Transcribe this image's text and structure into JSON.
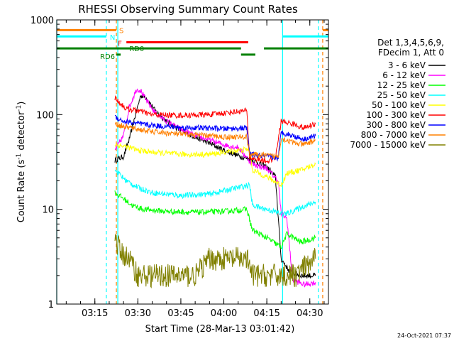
{
  "chart_data": {
    "type": "line",
    "title": "RHESSI Observing Summary Count Rates",
    "xlabel": "Start Time (28-Mar-13 03:01:42)",
    "ylabel": "Count Rate (s",
    "ylabel_sup": "-1",
    "ylabel_tail": " detector",
    "ylabel_sup2": "-1",
    "ylabel_close": ")",
    "y_scale": "log",
    "xlim": [
      "03:01:42",
      "04:36:30"
    ],
    "ylim": [
      1,
      1000
    ],
    "x_ticks": [
      "03:15",
      "03:30",
      "03:45",
      "04:00",
      "04:15",
      "04:30"
    ],
    "y_ticks": [
      "1",
      "10",
      "100",
      "1000"
    ],
    "legend_placement": "right",
    "legend_header": [
      "Det 1,3,4,5,6,9,",
      "FDecim 1, Att 0"
    ],
    "series": [
      {
        "name": "3 - 6 keV",
        "color": "#000000",
        "points": [
          [
            "03:22:00",
            33
          ],
          [
            "03:25:00",
            36
          ],
          [
            "03:27:00",
            55
          ],
          [
            "03:29:00",
            95
          ],
          [
            "03:31:00",
            160
          ],
          [
            "03:33:00",
            150
          ],
          [
            "03:36:00",
            110
          ],
          [
            "03:40:00",
            85
          ],
          [
            "03:45:00",
            68
          ],
          [
            "03:50:00",
            58
          ],
          [
            "03:55:00",
            50
          ],
          [
            "04:00:00",
            42
          ],
          [
            "04:05:00",
            37
          ],
          [
            "04:10:00",
            33
          ],
          [
            "04:15:00",
            28
          ],
          [
            "04:18:00",
            22
          ],
          [
            "04:20:00",
            3
          ],
          [
            "04:23:00",
            2.2
          ],
          [
            "04:27:00",
            2
          ],
          [
            "04:32:00",
            2
          ]
        ]
      },
      {
        "name": "6 - 12 keV",
        "color": "#ff00ff",
        "points": [
          [
            "03:22:00",
            42
          ],
          [
            "03:25:00",
            60
          ],
          [
            "03:27:00",
            120
          ],
          [
            "03:29:30",
            185
          ],
          [
            "03:31:00",
            180
          ],
          [
            "03:33:00",
            140
          ],
          [
            "03:36:00",
            105
          ],
          [
            "03:40:00",
            85
          ],
          [
            "03:45:00",
            70
          ],
          [
            "03:50:00",
            60
          ],
          [
            "03:55:00",
            54
          ],
          [
            "04:00:00",
            48
          ],
          [
            "04:05:00",
            45
          ],
          [
            "04:10:00",
            30
          ],
          [
            "04:15:00",
            27
          ],
          [
            "04:19:00",
            20
          ],
          [
            "04:20:00",
            9
          ],
          [
            "04:22:00",
            8
          ],
          [
            "04:24:00",
            1.8
          ],
          [
            "04:28:00",
            1.6
          ],
          [
            "04:32:00",
            1.7
          ]
        ]
      },
      {
        "name": "12 - 25 keV",
        "color": "#00ff00",
        "points": [
          [
            "03:22:00",
            15
          ],
          [
            "03:25:00",
            13
          ],
          [
            "03:28:00",
            11
          ],
          [
            "03:32:00",
            10
          ],
          [
            "03:40:00",
            9.5
          ],
          [
            "03:50:00",
            9.3
          ],
          [
            "04:00:00",
            9.5
          ],
          [
            "04:08:00",
            10
          ],
          [
            "04:10:00",
            6
          ],
          [
            "04:15:00",
            5
          ],
          [
            "04:20:00",
            4
          ],
          [
            "04:22:00",
            5.5
          ],
          [
            "04:27:00",
            4.5
          ],
          [
            "04:32:00",
            5
          ]
        ]
      },
      {
        "name": "25 - 50 keV",
        "color": "#00ffff",
        "points": [
          [
            "03:22:00",
            26
          ],
          [
            "03:26:00",
            20
          ],
          [
            "03:30:00",
            17
          ],
          [
            "03:35:00",
            15
          ],
          [
            "03:45:00",
            14
          ],
          [
            "03:55:00",
            14.5
          ],
          [
            "04:05:00",
            17
          ],
          [
            "04:09:00",
            18
          ],
          [
            "04:10:00",
            11
          ],
          [
            "04:15:00",
            10
          ],
          [
            "04:20:00",
            9
          ],
          [
            "04:22:00",
            9
          ],
          [
            "04:27:00",
            10.5
          ],
          [
            "04:32:00",
            12
          ]
        ]
      },
      {
        "name": "50 - 100 keV",
        "color": "#ffff00",
        "points": [
          [
            "03:22:00",
            48
          ],
          [
            "03:26:00",
            46
          ],
          [
            "03:30:00",
            42
          ],
          [
            "03:35:00",
            40
          ],
          [
            "03:45:00",
            38
          ],
          [
            "03:55:00",
            38
          ],
          [
            "04:05:00",
            42
          ],
          [
            "04:09:00",
            43
          ],
          [
            "04:10:00",
            26
          ],
          [
            "04:15:00",
            22
          ],
          [
            "04:20:00",
            18
          ],
          [
            "04:22:00",
            24
          ],
          [
            "04:27:00",
            26
          ],
          [
            "04:32:00",
            30
          ]
        ]
      },
      {
        "name": "100 - 300 keV",
        "color": "#ff0000",
        "points": [
          [
            "03:22:00",
            150
          ],
          [
            "03:24:00",
            130
          ],
          [
            "03:26:00",
            115
          ],
          [
            "03:30:00",
            110
          ],
          [
            "03:35:00",
            100
          ],
          [
            "03:45:00",
            98
          ],
          [
            "03:55:00",
            100
          ],
          [
            "04:00:00",
            104
          ],
          [
            "04:08:00",
            110
          ],
          [
            "04:09:00",
            35
          ],
          [
            "04:15:00",
            32
          ],
          [
            "04:18:00",
            35
          ],
          [
            "04:20:00",
            85
          ],
          [
            "04:24:00",
            80
          ],
          [
            "04:28:00",
            72
          ],
          [
            "04:32:00",
            80
          ]
        ]
      },
      {
        "name": "300 - 800 keV",
        "color": "#0000ff",
        "points": [
          [
            "03:22:00",
            95
          ],
          [
            "03:25:00",
            85
          ],
          [
            "03:30:00",
            80
          ],
          [
            "03:35:00",
            77
          ],
          [
            "03:45:00",
            73
          ],
          [
            "03:55:00",
            72
          ],
          [
            "04:00:00",
            71
          ],
          [
            "04:08:00",
            72
          ],
          [
            "04:09:00",
            38
          ],
          [
            "04:15:00",
            36
          ],
          [
            "04:19:00",
            35
          ],
          [
            "04:20:00",
            65
          ],
          [
            "04:24:00",
            60
          ],
          [
            "04:28:00",
            55
          ],
          [
            "04:32:00",
            60
          ]
        ]
      },
      {
        "name": "800 - 7000 keV",
        "color": "#ff8000",
        "points": [
          [
            "03:22:00",
            80
          ],
          [
            "03:25:00",
            75
          ],
          [
            "03:30:00",
            70
          ],
          [
            "03:35:00",
            66
          ],
          [
            "03:45:00",
            62
          ],
          [
            "03:55:00",
            60
          ],
          [
            "04:00:00",
            58
          ],
          [
            "04:08:00",
            58
          ],
          [
            "04:09:00",
            38
          ],
          [
            "04:15:00",
            37
          ],
          [
            "04:19:00",
            36
          ],
          [
            "04:20:00",
            56
          ],
          [
            "04:25:00",
            50
          ],
          [
            "04:28:00",
            48
          ],
          [
            "04:32:00",
            54
          ]
        ]
      },
      {
        "name": "7000 - 15000 keV",
        "color": "#808000",
        "points": [
          [
            "03:22:00",
            5
          ],
          [
            "03:24:00",
            3.5
          ],
          [
            "03:27:00",
            3
          ],
          [
            "03:30:00",
            2
          ],
          [
            "03:40:00",
            2
          ],
          [
            "03:50:00",
            2
          ],
          [
            "03:55:00",
            3
          ],
          [
            "04:00:00",
            3
          ],
          [
            "04:08:00",
            3
          ],
          [
            "04:10:00",
            2
          ],
          [
            "04:15:00",
            2
          ],
          [
            "04:20:00",
            2
          ],
          [
            "04:25:00",
            2
          ],
          [
            "04:32:00",
            3
          ]
        ]
      }
    ],
    "state_bars": [
      {
        "label": "S",
        "color": "#ff8000",
        "level": 780,
        "segments": [
          [
            "03:01:42",
            "03:22:30"
          ],
          [
            "04:34:30",
            "04:36:30"
          ]
        ]
      },
      {
        "label": "N",
        "color": "#00ffff",
        "level": 670,
        "segments": [
          [
            "03:01:42",
            "03:19:00"
          ],
          [
            "04:20:30",
            "04:36:30"
          ]
        ]
      },
      {
        "label": "F",
        "color": "#ff0000",
        "level": 580,
        "segments": [
          [
            "03:26:00",
            "04:08:30"
          ]
        ]
      },
      {
        "label": "RD0",
        "color": "#008000",
        "level": 500,
        "segments": [
          [
            "03:01:42",
            "04:06:00"
          ],
          [
            "04:14:00",
            "04:36:30"
          ]
        ]
      },
      {
        "label": "RD6",
        "color": "#008000",
        "level": 430,
        "segments": [
          [
            "03:22:30",
            "03:24:00"
          ],
          [
            "04:06:00",
            "04:11:00"
          ]
        ]
      }
    ],
    "vlines": [
      {
        "time": "03:01:42",
        "color": "#00ffff",
        "style": "solid"
      },
      {
        "time": "03:19:00",
        "color": "#00ffff",
        "style": "dashed"
      },
      {
        "time": "03:22:30",
        "color": "#ff8000",
        "style": "dashed"
      },
      {
        "time": "03:23:00",
        "color": "#00ffff",
        "style": "solid"
      },
      {
        "time": "04:20:30",
        "color": "#00ffff",
        "style": "solid"
      },
      {
        "time": "04:33:00",
        "color": "#00ffff",
        "style": "dashed"
      },
      {
        "time": "04:34:30",
        "color": "#ff8000",
        "style": "dashed"
      }
    ],
    "footer": "24-Oct-2021 07:37"
  }
}
